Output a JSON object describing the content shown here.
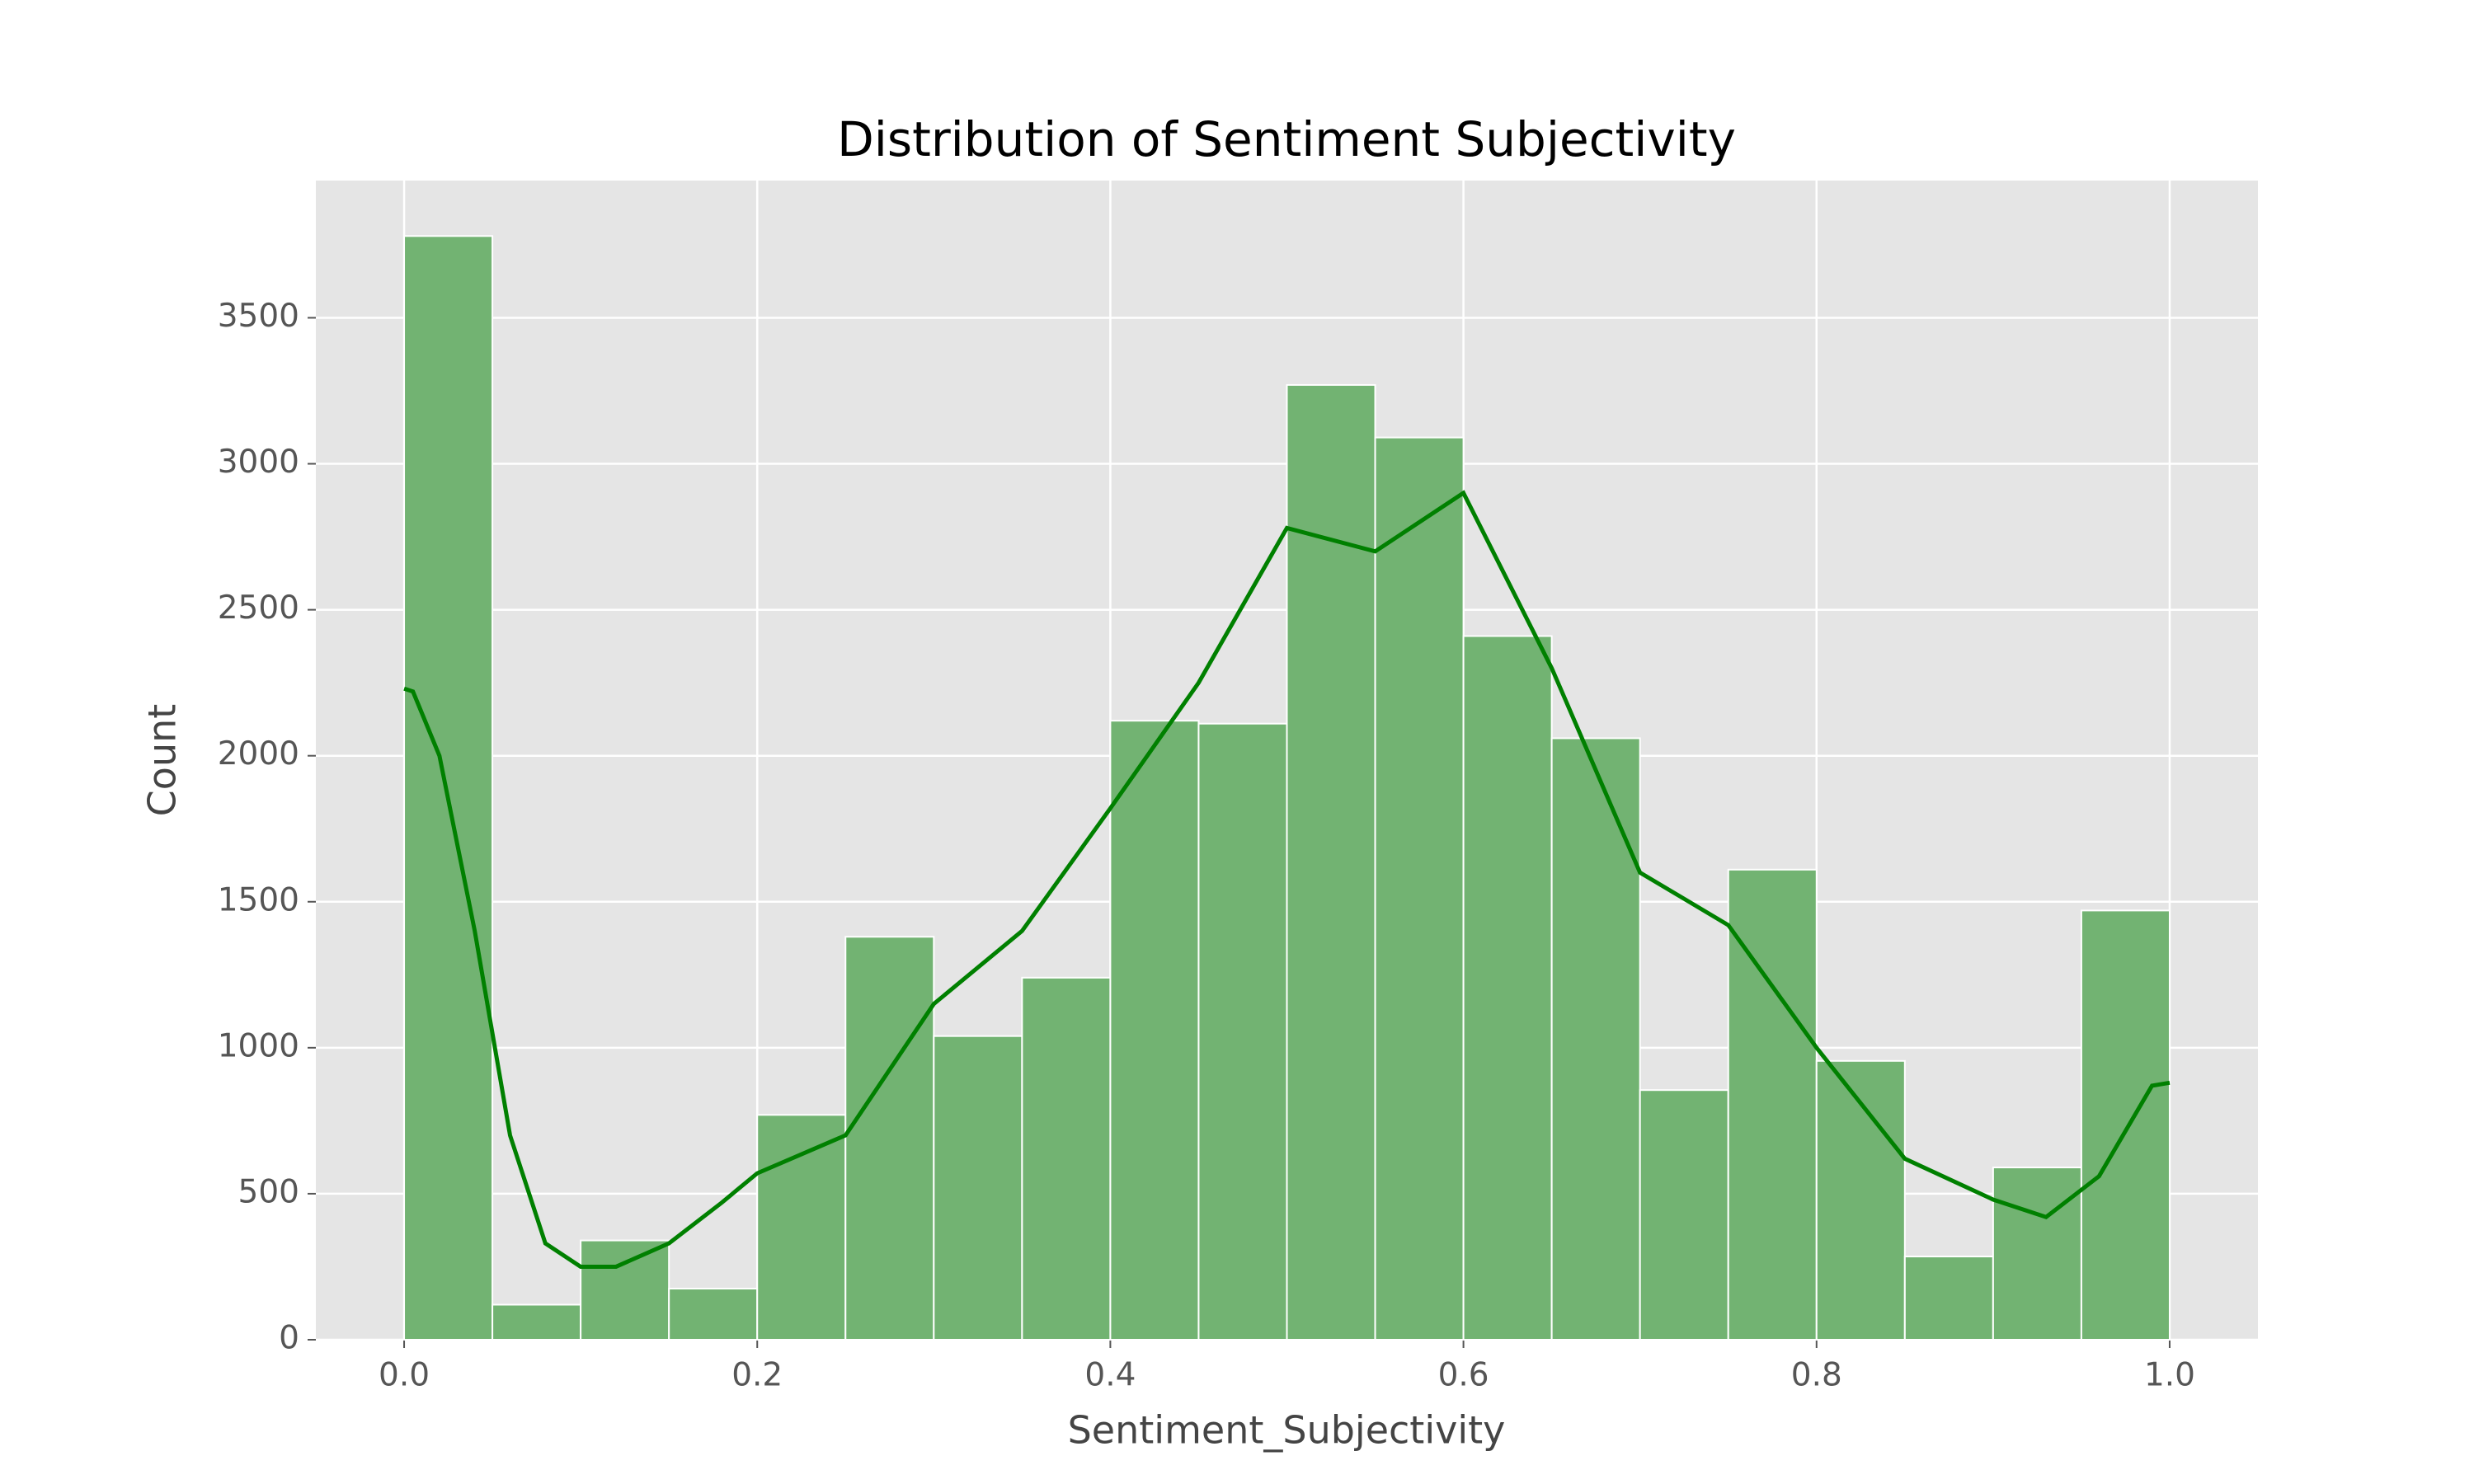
{
  "chart_data": {
    "type": "histogram",
    "title": "Distribution of Sentiment Subjectivity",
    "xlabel": "Sentiment_Subjectivity",
    "ylabel": "Count",
    "bins": [
      0,
      0.05,
      0.1,
      0.15,
      0.2,
      0.25,
      0.3,
      0.35,
      0.4,
      0.45,
      0.5,
      0.55,
      0.6,
      0.65,
      0.7,
      0.75,
      0.8,
      0.85,
      0.9,
      0.95,
      1.0
    ],
    "values": [
      3780,
      120,
      340,
      175,
      770,
      1380,
      1040,
      1240,
      2120,
      2110,
      3270,
      3090,
      2410,
      2060,
      855,
      1610,
      955,
      285,
      590,
      1470
    ],
    "color": "#72b372",
    "kde": {
      "color": "#008000",
      "x": [
        0,
        0.005,
        0.02,
        0.04,
        0.06,
        0.08,
        0.1,
        0.12,
        0.15,
        0.18,
        0.2,
        0.25,
        0.3,
        0.35,
        0.4,
        0.45,
        0.5,
        0.55,
        0.6,
        0.65,
        0.7,
        0.75,
        0.8,
        0.85,
        0.9,
        0.93,
        0.96,
        0.99,
        1.0
      ],
      "values": [
        2230,
        2220,
        2000,
        1400,
        700,
        330,
        250,
        250,
        330,
        470,
        570,
        700,
        1150,
        1400,
        1820,
        2250,
        2780,
        2700,
        2900,
        2300,
        1600,
        1420,
        1000,
        620,
        480,
        420,
        560,
        870,
        880
      ]
    },
    "xlim": [
      -0.05,
      1.05
    ],
    "ylim": [
      0,
      3970
    ],
    "xticks": [
      {
        "value": 0,
        "label": "0.0"
      },
      0.2,
      0.4,
      0.6,
      0.8,
      {
        "value": 1.0,
        "label": "1.0"
      }
    ],
    "yticks": [
      0,
      500,
      1000,
      1500,
      2000,
      2500,
      3000,
      3500
    ],
    "grid": true
  }
}
